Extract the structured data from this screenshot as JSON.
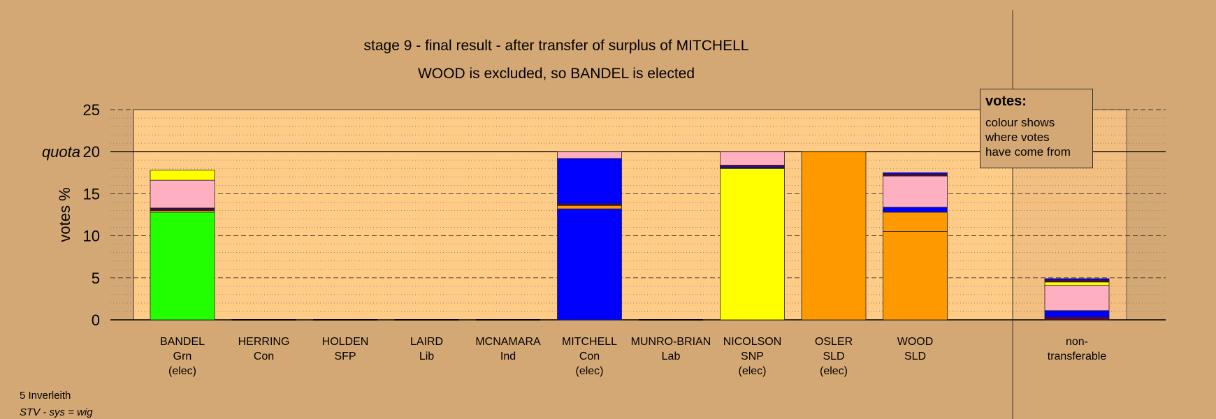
{
  "chart_data": {
    "type": "bar",
    "stacked": true,
    "title": "stage 9 - final result - after transfer of surplus of MITCHELL",
    "subtitle": "WOOD is excluded, so BANDEL is elected",
    "ylabel": "votes %",
    "quota_label": "quota",
    "quota": 20,
    "ylim": [
      0,
      25
    ],
    "yticks": [
      "0",
      "5",
      "10",
      "15",
      "20",
      "25"
    ],
    "legend": {
      "title": "votes:",
      "lines": [
        "colour shows",
        "where votes",
        "have come from"
      ]
    },
    "candidates": [
      {
        "name": "BANDEL",
        "party": "Grn",
        "status": "(elec)",
        "segments": [
          {
            "color": "#22ff00",
            "value": 12.8
          },
          {
            "color": "#ff9900",
            "value": 0.2
          },
          {
            "color": "#660033",
            "value": 0.2
          },
          {
            "color": "#0000ff",
            "value": 0.1
          },
          {
            "color": "#ffb0c0",
            "value": 3.3
          },
          {
            "color": "#ffff00",
            "value": 1.2
          }
        ]
      },
      {
        "name": "HERRING",
        "party": "Con",
        "status": "",
        "segments": []
      },
      {
        "name": "HOLDEN",
        "party": "SFP",
        "status": "",
        "segments": []
      },
      {
        "name": "LAIRD",
        "party": "Lib",
        "status": "",
        "segments": []
      },
      {
        "name": "MCNAMARA",
        "party": "Ind",
        "status": "",
        "segments": []
      },
      {
        "name": "MITCHELL",
        "party": "Con",
        "status": "(elec)",
        "segments": [
          {
            "color": "#0000ff",
            "value": 13.2
          },
          {
            "color": "#ff9900",
            "value": 0.4
          },
          {
            "color": "#660033",
            "value": 0.2
          },
          {
            "color": "#0000ff",
            "value": 5.4
          },
          {
            "color": "#ffb0c0",
            "value": 0.8
          }
        ]
      },
      {
        "name": "MUNRO-BRIAN",
        "party": "Lab",
        "status": "",
        "segments": []
      },
      {
        "name": "NICOLSON",
        "party": "SNP",
        "status": "(elec)",
        "segments": [
          {
            "color": "#ffff00",
            "value": 18.0
          },
          {
            "color": "#0000ff",
            "value": 0.2
          },
          {
            "color": "#660033",
            "value": 0.2
          },
          {
            "color": "#ffb0c0",
            "value": 1.6
          }
        ]
      },
      {
        "name": "OSLER",
        "party": "SLD",
        "status": "(elec)",
        "segments": [
          {
            "color": "#ff9900",
            "value": 20.0
          }
        ]
      },
      {
        "name": "WOOD",
        "party": "SLD",
        "status": "",
        "segments": [
          {
            "color": "#ff9900",
            "value": 10.5
          },
          {
            "color": "#ff9900",
            "value": 2.3
          },
          {
            "color": "#0000ff",
            "value": 0.6
          },
          {
            "color": "#ffb0c0",
            "value": 3.7
          },
          {
            "color": "#660033",
            "value": 0.2
          },
          {
            "color": "#0000ff",
            "value": 0.2
          }
        ]
      }
    ],
    "nontransferable": {
      "label_line1": "non-",
      "label_line2": "transferable",
      "segments": [
        {
          "color": "#660033",
          "value": 0.3
        },
        {
          "color": "#0000ff",
          "value": 0.8
        },
        {
          "color": "#ffb0c0",
          "value": 3.0
        },
        {
          "color": "#ffff00",
          "value": 0.4
        },
        {
          "color": "#660033",
          "value": 0.2
        },
        {
          "color": "#0000ff",
          "value": 0.2
        }
      ]
    }
  },
  "footer": {
    "ward": "5 Inverleith",
    "system": "STV - sys = wig"
  }
}
